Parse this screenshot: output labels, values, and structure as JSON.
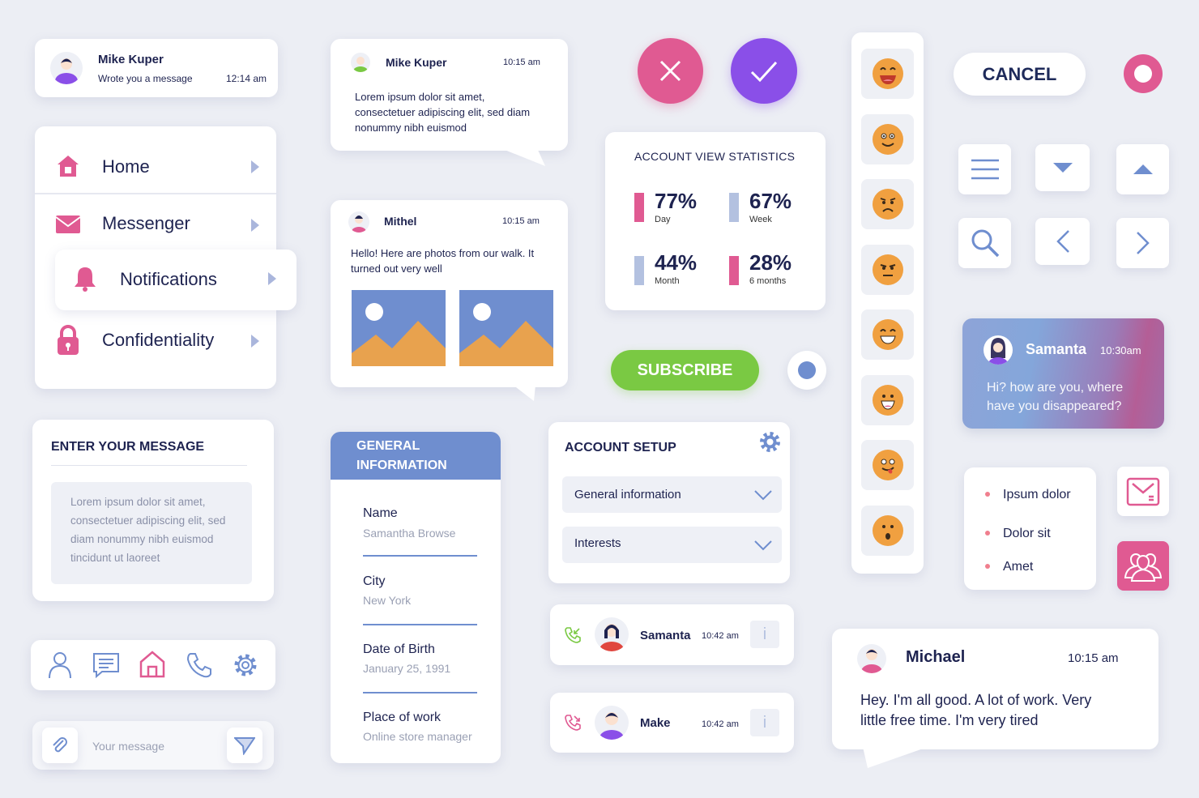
{
  "notif_card": {
    "name": "Mike Kuper",
    "subtitle": "Wrote you a message",
    "time": "12:14 am"
  },
  "menu": {
    "items": [
      {
        "label": "Home",
        "icon": "home-icon"
      },
      {
        "label": "Messenger",
        "icon": "envelope-icon"
      },
      {
        "label": "Notifications",
        "icon": "bell-icon"
      },
      {
        "label": "Confidentiality",
        "icon": "lock-icon"
      }
    ]
  },
  "message_form": {
    "title": "ENTER YOUR MESSAGE",
    "body": [
      "Lorem ipsum dolor sit amet,",
      "consectetuer adipiscing elit, sed",
      "diam nonummy nibh euismod",
      "tincidunt ut laoreet"
    ]
  },
  "bottom_nav": {
    "icons": [
      "user-icon",
      "chat-icon",
      "home-icon",
      "phone-icon",
      "gear-icon"
    ]
  },
  "message_input": {
    "placeholder": "Your message"
  },
  "chat1": {
    "name": "Mike Kuper",
    "time": "10:15 am",
    "lines": [
      "Lorem ipsum dolor sit amet,",
      "consectetuer adipiscing elit, sed diam",
      "nonummy nibh euismod"
    ]
  },
  "chat2": {
    "name": "Mithel",
    "time": "10:15 am",
    "lines": [
      "Hello! Here are photos from our walk. It",
      "turned out very well"
    ]
  },
  "general_info": {
    "title_lines": [
      "GENERAL",
      "INFORMATION"
    ],
    "fields": [
      {
        "label": "Name",
        "value": "Samantha Browse"
      },
      {
        "label": "City",
        "value": "New York"
      },
      {
        "label": "Date of Birth",
        "value": "January 25, 1991"
      },
      {
        "label": "Place of work",
        "value": "Online store manager"
      }
    ]
  },
  "stats": {
    "title": "ACCOUNT VIEW STATISTICS",
    "items": [
      {
        "value": "77%",
        "label": "Day",
        "color": "#e05a92"
      },
      {
        "value": "67%",
        "label": "Week",
        "color": "#b3c1e0"
      },
      {
        "value": "44%",
        "label": "Month",
        "color": "#b3c1e0"
      },
      {
        "value": "28%",
        "label": "6 months",
        "color": "#e05a92"
      }
    ]
  },
  "subscribe": {
    "label": "SUBSCRIBE",
    "color": "#7ac943"
  },
  "account_setup": {
    "title": "ACCOUNT SETUP",
    "dropdowns": [
      "General information",
      "Interests"
    ]
  },
  "calls": [
    {
      "name": "Samanta",
      "time": "10:42 am",
      "type": "incoming"
    },
    {
      "name": "Make",
      "time": "10:42 am",
      "type": "missed"
    }
  ],
  "emojis": [
    "laughing",
    "smiling",
    "sad",
    "annoyed",
    "grinning",
    "happy",
    "tongue",
    "surprised"
  ],
  "cancel": {
    "label": "CANCEL"
  },
  "samanta_msg": {
    "name": "Samanta",
    "time": "10:30am",
    "lines": [
      "Hi? how are you, where",
      "have you disappeared?"
    ]
  },
  "bullet_list": [
    "Ipsum dolor",
    "Dolor sit",
    "Amet"
  ],
  "michael": {
    "name": "Michael",
    "time": "10:15 am",
    "lines": [
      "Hey. I'm all good. A lot of work. Very",
      "little free time. I'm very tired"
    ]
  },
  "colors": {
    "pink": "#e05a92",
    "purple": "#8a4fe8",
    "blue": "#6f8ecf",
    "navy": "#1e2350",
    "orange": "#f0a040"
  }
}
